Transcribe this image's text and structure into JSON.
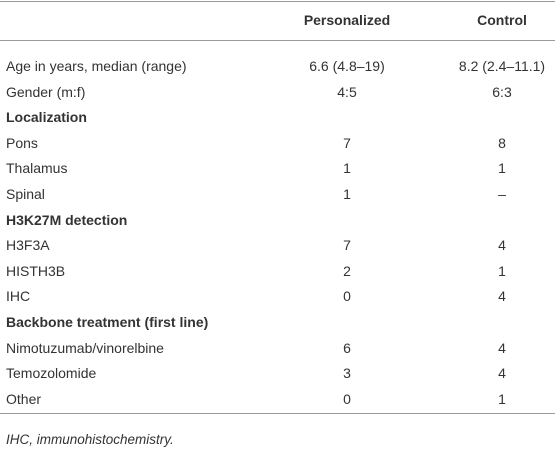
{
  "table": {
    "header": [
      "Personalized",
      "Control"
    ],
    "rows": [
      [
        "Age in years, median (range)",
        "6.6 (4.8–19)",
        "8.2 (2.4–11.1)"
      ],
      [
        "Gender (m:f)",
        "4:5",
        "6:3"
      ],
      [
        "Localization"
      ],
      [
        "Pons",
        "7",
        "8"
      ],
      [
        "Thalamus",
        "1",
        "1"
      ],
      [
        "Spinal",
        "1",
        "–"
      ],
      [
        "H3K27M detection"
      ],
      [
        "H3F3A",
        "7",
        "4"
      ],
      [
        "HISTH3B",
        "2",
        "1"
      ],
      [
        "IHC",
        "0",
        "4"
      ],
      [
        "Backbone treatment (first line)"
      ],
      [
        "Nimotuzumab/vinorelbine",
        "6",
        "4"
      ],
      [
        "Temozolomide",
        "3",
        "4"
      ],
      [
        "Other",
        "0",
        "1"
      ]
    ]
  },
  "footnote": "IHC, immunohistochemistry."
}
